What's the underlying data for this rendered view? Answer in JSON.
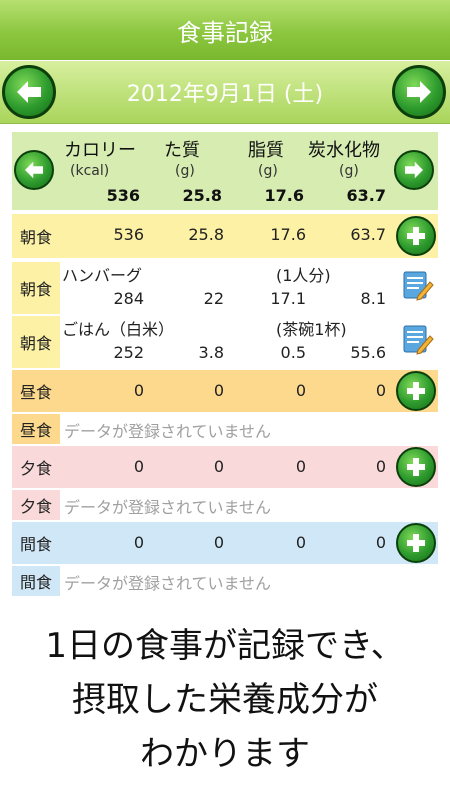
{
  "header": {
    "title": "食事記録"
  },
  "date": {
    "label": "2012年9月1日 (土)"
  },
  "summary": {
    "headers": [
      "カロリー",
      "た質",
      "脂質",
      "炭水化物"
    ],
    "units": [
      "(kcal)",
      "(g)",
      "(g)",
      "(g)"
    ],
    "values": [
      "536",
      "25.8",
      "17.6",
      "63.7"
    ]
  },
  "breakfast": {
    "label": "朝食",
    "totals": [
      "536",
      "25.8",
      "17.6",
      "63.7"
    ],
    "items": [
      {
        "label": "朝食",
        "name": "ハンバーグ",
        "portion": "(1人分)",
        "values": [
          "284",
          "22",
          "17.1",
          "8.1"
        ]
      },
      {
        "label": "朝食",
        "name": "ごはん（白米）",
        "portion": "(茶碗1杯)",
        "values": [
          "252",
          "3.8",
          "0.5",
          "55.6"
        ]
      }
    ]
  },
  "lunch": {
    "label": "昼食",
    "totals": [
      "0",
      "0",
      "0",
      "0"
    ],
    "empty_label": "昼食",
    "empty_text": "データが登録されていません"
  },
  "dinner": {
    "label": "夕食",
    "totals": [
      "0",
      "0",
      "0",
      "0"
    ],
    "empty_label": "夕食",
    "empty_text": "データが登録されていません"
  },
  "snack": {
    "label": "間食",
    "totals": [
      "0",
      "0",
      "0",
      "0"
    ],
    "empty_label": "間食",
    "empty_text": "データが登録されていません"
  },
  "caption": {
    "line1": "1日の食事が記録でき、",
    "line2": "摂取した栄養成分が",
    "line3": "わかります"
  },
  "colors": {
    "accent_green": "#8cc63f",
    "summary_bg": "#d6ecb1",
    "breakfast_bg": "#fdf1a6",
    "lunch_bg": "#fcd98d",
    "dinner_bg": "#f9d9d9",
    "snack_bg": "#cfe7f6"
  },
  "icons": {
    "prev": "left-arrow-icon",
    "next": "right-arrow-icon",
    "add": "plus-icon",
    "edit": "edit-icon"
  }
}
